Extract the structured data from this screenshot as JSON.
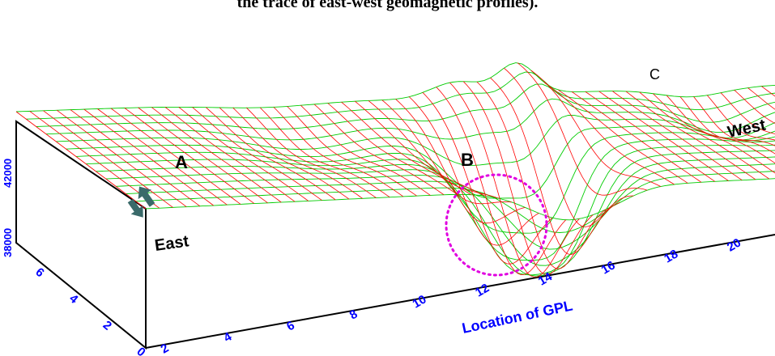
{
  "title_fragment": "the trace of east-west geomagnetic profiles).",
  "labels": {
    "feature_a": "A",
    "feature_b": "B",
    "feature_c": "C",
    "east": "East",
    "west": "West",
    "x_axis": "Location of GPL"
  },
  "x_ticks": [
    "2",
    "4",
    "6",
    "8",
    "10",
    "12",
    "14",
    "16",
    "18",
    "20"
  ],
  "y_ticks": [
    "0",
    "2",
    "4",
    "6"
  ],
  "z_ticks": [
    "38000",
    "42000"
  ],
  "colors": {
    "mesh_line_1": "#ff0000",
    "mesh_line_2": "#00cc00",
    "axis": "#000000",
    "tick_label": "#0000ff",
    "anomaly_circle": "#e000e0",
    "north_arrow": "#3a6a6a"
  },
  "icons": {
    "north_arrow": "north-arrow-icon"
  }
}
